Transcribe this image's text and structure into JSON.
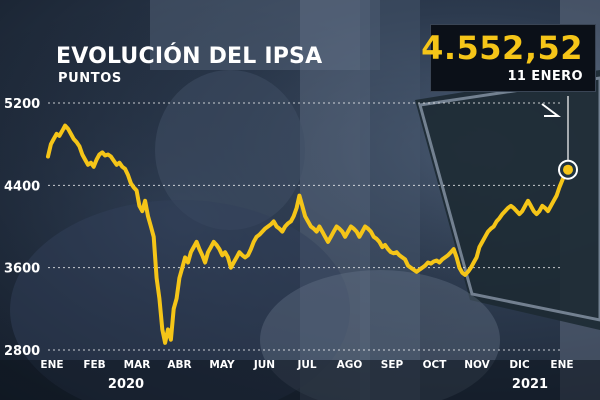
{
  "title": "EVOLUCIÓN DEL IPSA",
  "subtitle": "PUNTOS",
  "highlight": {
    "value": "4.552,52",
    "date": "11 ENERO"
  },
  "colors": {
    "line": "#f5c518",
    "background": "#1b2535",
    "text": "#ffffff"
  },
  "chart_data": {
    "type": "line",
    "title": "EVOLUCIÓN DEL IPSA",
    "ylabel": "PUNTOS",
    "ylim": [
      2800,
      5200
    ],
    "yticks": [
      2800,
      3600,
      4400,
      5200
    ],
    "ytick_labels": [
      "2800",
      "3600",
      "4400",
      "5200"
    ],
    "grid": "horizontal dotted",
    "month_labels": [
      "ENE",
      "FEB",
      "MAR",
      "ABR",
      "MAY",
      "JUN",
      "JUL",
      "AGO",
      "SEP",
      "OCT",
      "NOV",
      "DIC",
      "ENE"
    ],
    "year_labels": [
      "2020",
      "2021"
    ],
    "series": [
      {
        "values": [
          4680,
          4800,
          4850,
          4900,
          4880,
          4930,
          4980,
          4950,
          4900,
          4850,
          4820,
          4780,
          4700,
          4650,
          4600,
          4620,
          4580,
          4650,
          4700,
          4720,
          4690,
          4700,
          4680,
          4640,
          4600,
          4620,
          4580,
          4560,
          4500,
          4420,
          4380,
          4350,
          4200,
          4150,
          4250,
          4100,
          4000,
          3900,
          3500,
          3300,
          3000,
          2870,
          3000,
          2900,
          3200,
          3300,
          3500,
          3600,
          3700,
          3650,
          3750,
          3800,
          3850,
          3780,
          3720,
          3650,
          3750,
          3800,
          3850,
          3820,
          3780,
          3720,
          3750,
          3700,
          3600,
          3650,
          3700,
          3750,
          3720,
          3700,
          3720,
          3780,
          3850,
          3900,
          3920,
          3950,
          3980,
          4000,
          4020,
          4050,
          4000,
          3980,
          3950,
          4000,
          4030,
          4050,
          4100,
          4180,
          4300,
          4200,
          4100,
          4050,
          4000,
          3980,
          3950,
          4000,
          3950,
          3900,
          3850,
          3900,
          3950,
          4000,
          3980,
          3950,
          3900,
          3950,
          4000,
          3980,
          3950,
          3900,
          3950,
          4000,
          3980,
          3950,
          3900,
          3880,
          3850,
          3800,
          3820,
          3780,
          3750,
          3740,
          3750,
          3720,
          3700,
          3680,
          3620,
          3600,
          3580,
          3560,
          3580,
          3600,
          3620,
          3650,
          3640,
          3660,
          3670,
          3650,
          3680,
          3700,
          3720,
          3750,
          3780,
          3700,
          3600,
          3550,
          3530,
          3560,
          3600,
          3650,
          3700,
          3800,
          3850,
          3900,
          3950,
          3980,
          4000,
          4050,
          4080,
          4120,
          4150,
          4180,
          4200,
          4180,
          4150,
          4120,
          4150,
          4200,
          4250,
          4200,
          4150,
          4120,
          4150,
          4200,
          4180,
          4150,
          4200,
          4250,
          4300,
          4380,
          4450,
          4520,
          4552
        ]
      }
    ]
  }
}
